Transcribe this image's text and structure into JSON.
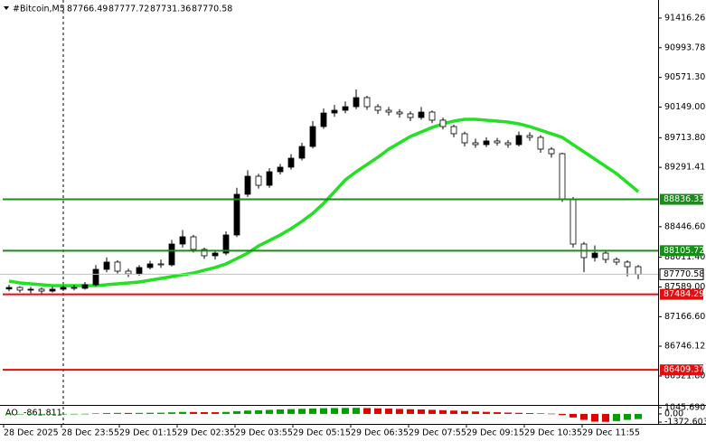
{
  "chart_data": {
    "type": "candlestick",
    "title": "#Bitcoin,M5",
    "header_ohlc": [
      87766.49,
      87777.72,
      87731.36,
      87770.58
    ],
    "x_labels": [
      "28 Dec 2025",
      "28 Dec 23:55",
      "29 Dec 01:15",
      "29 Dec 02:35",
      "29 Dec 03:55",
      "29 Dec 05:15",
      "29 Dec 06:35",
      "29 Dec 07:55",
      "29 Dec 09:15",
      "29 Dec 10:35",
      "29 Dec 11:55"
    ],
    "open": [
      87560,
      87582,
      87544,
      87557,
      87531,
      87557,
      87582,
      87570,
      87621,
      87840,
      87943,
      87814,
      87775,
      87866,
      87917,
      87904,
      88200,
      88303,
      88123,
      88033,
      88071,
      88329,
      88908,
      89165,
      89036,
      89229,
      89294,
      89422,
      89589,
      89872,
      90065,
      90104,
      90155,
      90284,
      90155,
      90104,
      90078,
      90053,
      90001,
      90078,
      89963,
      89872,
      89770,
      89641,
      89615,
      89667,
      89641,
      89615,
      89744,
      89718,
      89551,
      89486,
      88843,
      88200,
      88007,
      88071,
      87981,
      87943,
      87878
    ],
    "high": [
      87620,
      87600,
      87590,
      87580,
      87590,
      87610,
      87620,
      87660,
      87900,
      88010,
      87970,
      87850,
      87900,
      87960,
      87980,
      88260,
      88400,
      88330,
      88150,
      88110,
      88380,
      89000,
      89250,
      89200,
      89280,
      89340,
      89480,
      89640,
      89950,
      90130,
      90180,
      90230,
      90400,
      90310,
      90190,
      90150,
      90120,
      90090,
      90150,
      90100,
      90000,
      89900,
      89800,
      89700,
      89720,
      89710,
      89680,
      89800,
      89790,
      89750,
      89580,
      89500,
      88870,
      88230,
      88180,
      88100,
      88010,
      87970,
      87900
    ],
    "low": [
      87530,
      87510,
      87500,
      87480,
      87510,
      87530,
      87540,
      87550,
      87600,
      87800,
      87780,
      87730,
      87750,
      87840,
      87860,
      87880,
      88150,
      88080,
      87990,
      87980,
      88040,
      88300,
      88870,
      88990,
      89000,
      89190,
      89260,
      89390,
      89560,
      89840,
      90010,
      90060,
      90120,
      90110,
      90050,
      90030,
      90000,
      89950,
      89970,
      89920,
      89830,
      89720,
      89590,
      89570,
      89580,
      89600,
      89570,
      89590,
      89670,
      89500,
      89430,
      88800,
      88150,
      87800,
      87950,
      87930,
      87900,
      87740,
      87700
    ],
    "close": [
      87582,
      87544,
      87557,
      87531,
      87557,
      87582,
      87570,
      87621,
      87840,
      87943,
      87814,
      87775,
      87866,
      87917,
      87904,
      88200,
      88303,
      88123,
      88033,
      88071,
      88329,
      88908,
      89165,
      89036,
      89229,
      89294,
      89422,
      89589,
      89872,
      90065,
      90104,
      90155,
      90284,
      90155,
      90104,
      90078,
      90053,
      90001,
      90078,
      89963,
      89872,
      89770,
      89641,
      89615,
      89667,
      89641,
      89615,
      89744,
      89718,
      89551,
      89486,
      88843,
      88200,
      88007,
      88071,
      87981,
      87943,
      87878,
      87770.58
    ],
    "up_color": "#000000",
    "down_color": "#ffffff",
    "ma": {
      "color": "#22e022",
      "values": [
        87673,
        87647,
        87634,
        87621,
        87608,
        87608,
        87608,
        87608,
        87608,
        87621,
        87634,
        87647,
        87660,
        87685,
        87711,
        87737,
        87763,
        87788,
        87827,
        87866,
        87917,
        87994,
        88071,
        88174,
        88251,
        88329,
        88419,
        88522,
        88637,
        88779,
        88946,
        89113,
        89229,
        89332,
        89435,
        89551,
        89641,
        89731,
        89795,
        89860,
        89911,
        89950,
        89975,
        89975,
        89963,
        89950,
        89937,
        89911,
        89872,
        89821,
        89770,
        89718,
        89615,
        89512,
        89409,
        89306,
        89203,
        89075,
        88946
      ]
    },
    "ylim": [
      85910,
      91609
    ],
    "yticks": [
      91416.26,
      90993.78,
      {
        "value": 90571.3,
        "label": "90571.30"
      },
      {
        "value": 90149,
        "label": "90149.00"
      },
      {
        "value": 89713.8,
        "label": "89713.80"
      },
      89291.41,
      {
        "value": 88446.6,
        "label": "88446.60"
      },
      {
        "value": 88011.4,
        "label": "88011.40"
      },
      {
        "value": 87589,
        "label": "87589.00"
      },
      {
        "value": 87166.6,
        "label": "87166.60"
      },
      86746.12,
      {
        "value": 86321.8,
        "label": "86321.80"
      }
    ],
    "levels": [
      {
        "value": 88836.33,
        "color": "#1a8c1a"
      },
      {
        "value": 88105.72,
        "color": "#1a8c1a"
      },
      {
        "value": 87484.29,
        "color": "#e01010"
      },
      {
        "value": 86409.37,
        "color": "#e01010"
      }
    ],
    "indicator": {
      "title": "AO",
      "up_color": "#00a000",
      "down_color": "#e00000",
      "values": [
        -50,
        -40,
        -30,
        -20,
        -10,
        5,
        10,
        20,
        80,
        150,
        170,
        160,
        170,
        190,
        200,
        260,
        330,
        320,
        290,
        280,
        330,
        450,
        560,
        600,
        680,
        740,
        800,
        850,
        900,
        950,
        980,
        1000,
        1020,
        980,
        930,
        880,
        830,
        780,
        740,
        680,
        620,
        560,
        480,
        400,
        340,
        280,
        220,
        180,
        140,
        90,
        40,
        -200,
        -600,
        -1000,
        -1300,
        -1330,
        -1200,
        -1000,
        -861.811
      ],
      "ylim": [
        -1372.603,
        1045.69
      ],
      "yticks": [
        {
          "value": 1045.69,
          "label": "1045.690"
        },
        {
          "value": 0,
          "label": "0.00"
        },
        -1372.603
      ]
    }
  }
}
